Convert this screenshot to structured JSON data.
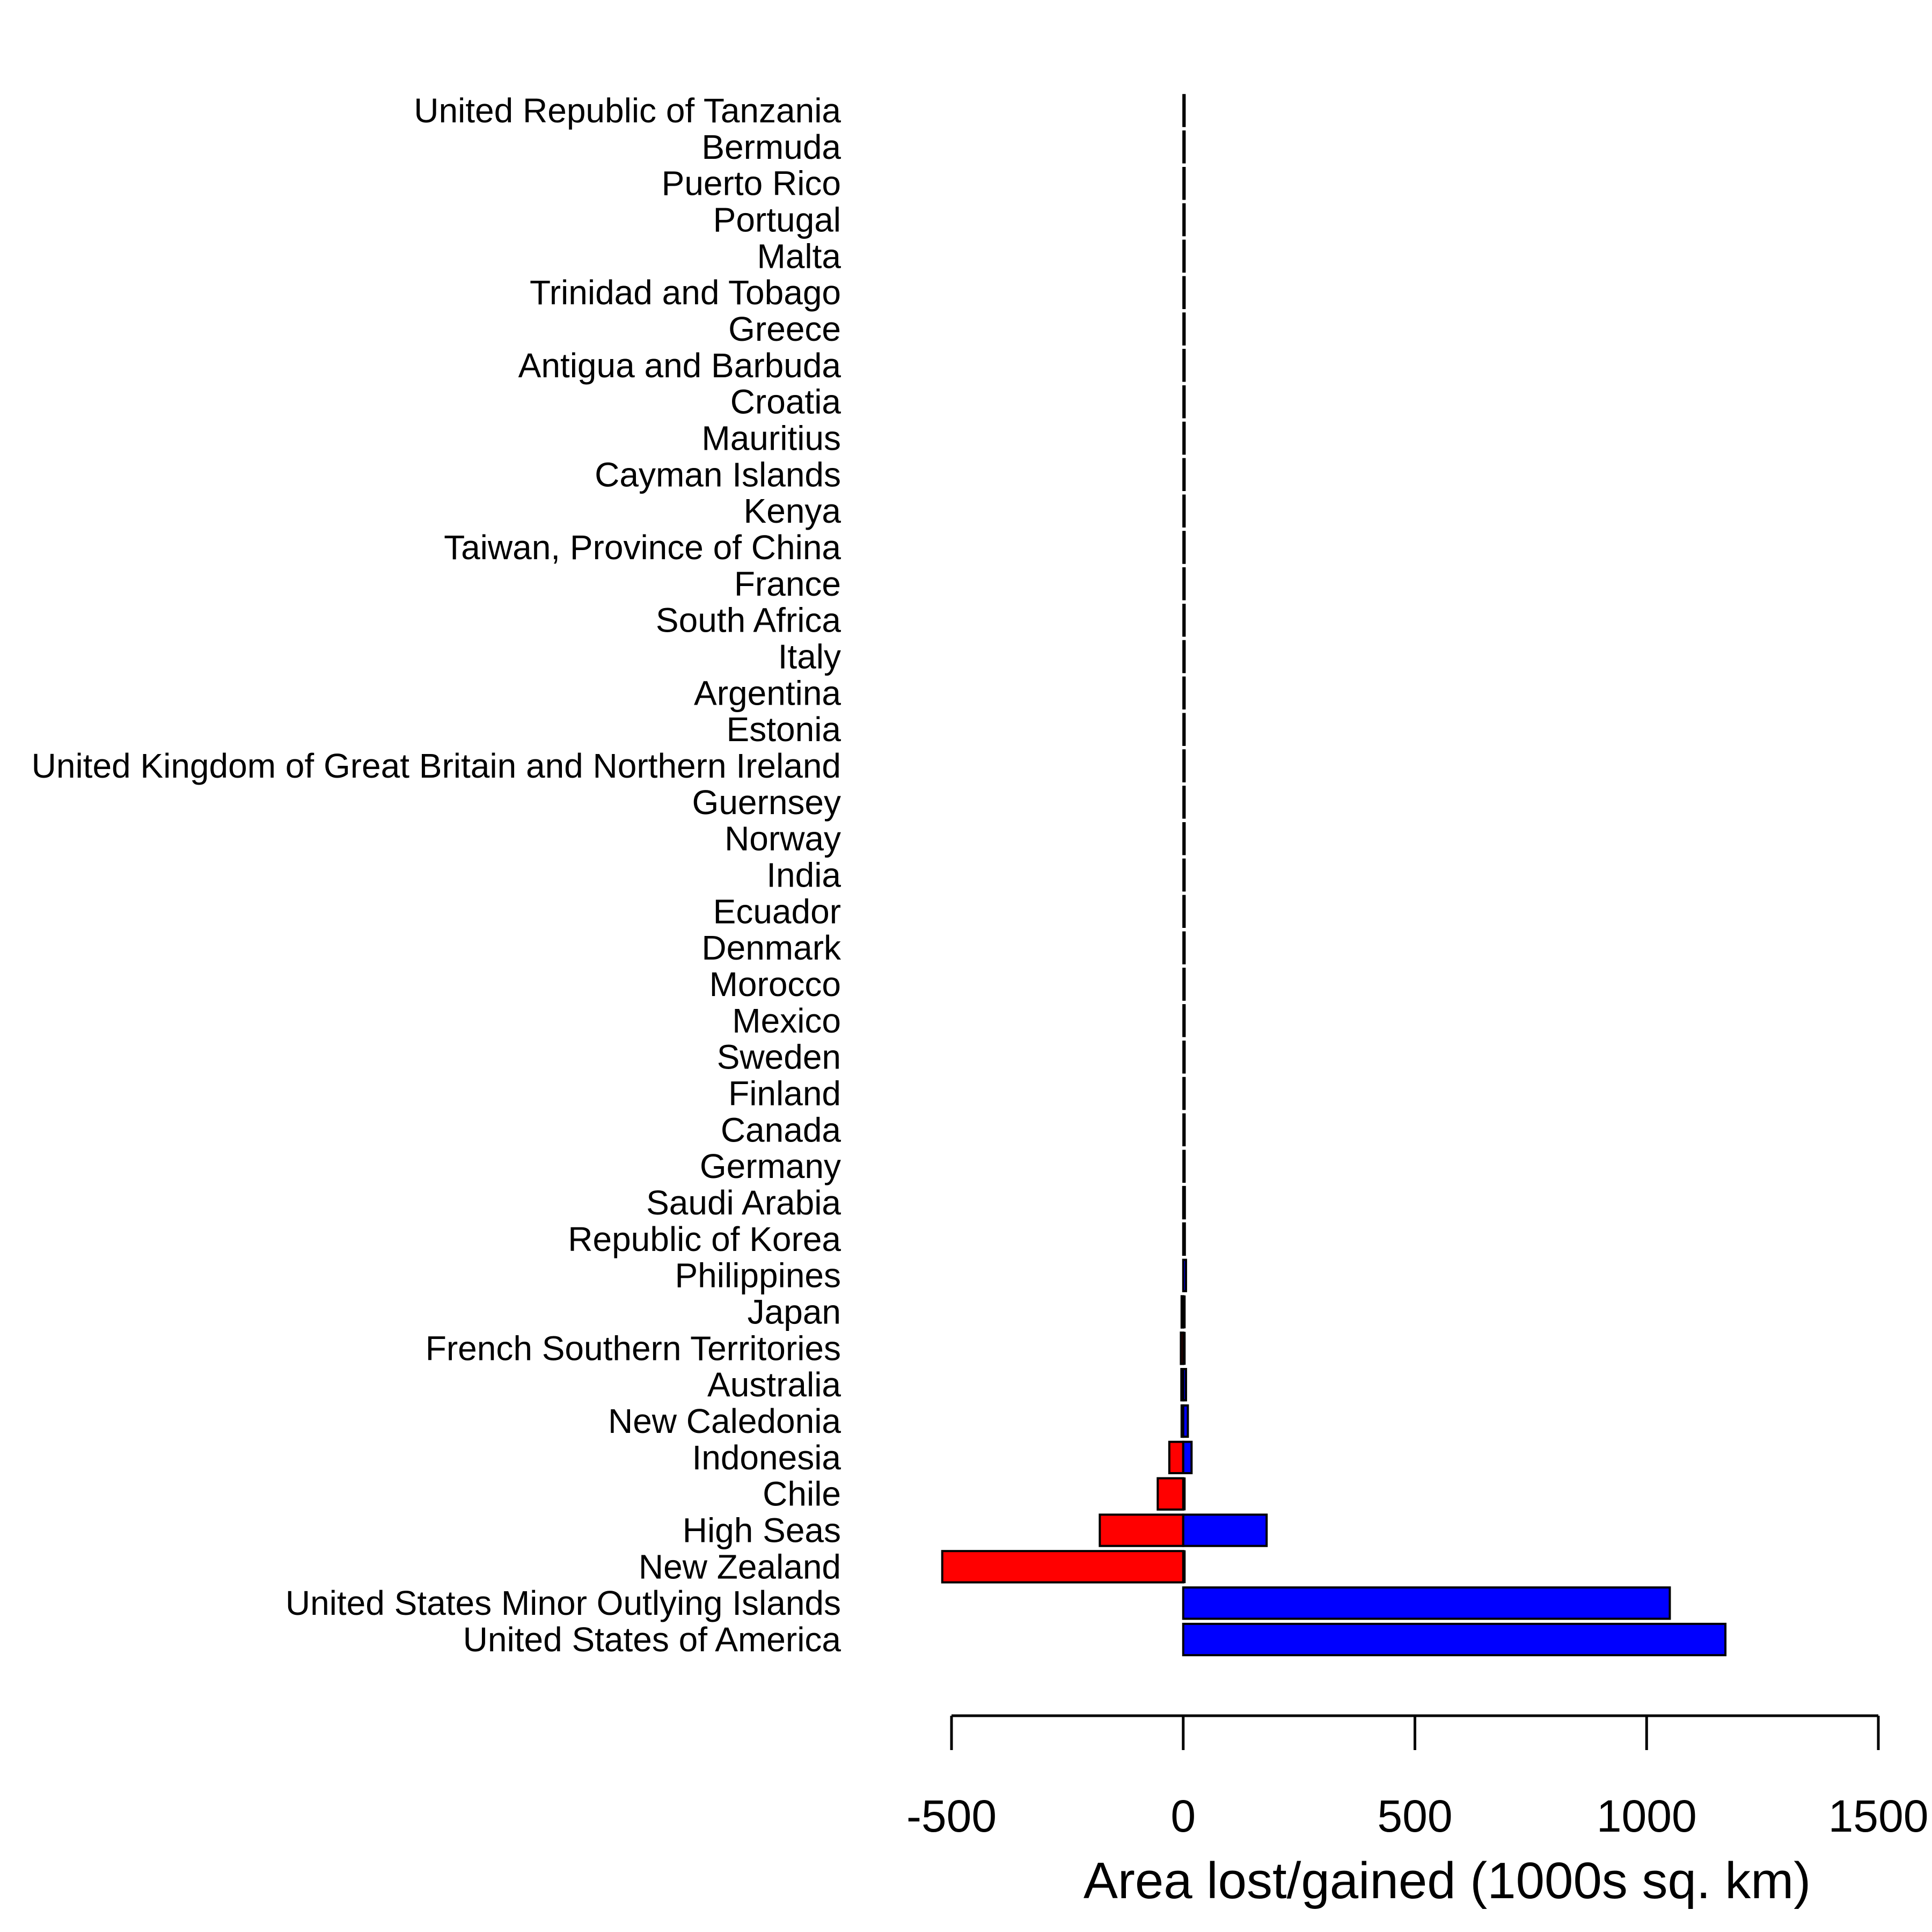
{
  "chart_data": {
    "type": "bar",
    "orientation": "horizontal",
    "title": "",
    "xlabel": "Area lost/gained (1000s sq. km)",
    "ylabel": "",
    "xlim": [
      -500,
      1500
    ],
    "xticks": [
      -500,
      0,
      500,
      1000,
      1500
    ],
    "grid": false,
    "legend": "none",
    "colors": {
      "lost": "#ff0000",
      "gained": "#0000ff",
      "outline": "#000000"
    },
    "categories": [
      "United Republic of Tanzania",
      "Bermuda",
      "Puerto Rico",
      "Portugal",
      "Malta",
      "Trinidad and Tobago",
      "Greece",
      "Antigua and Barbuda",
      "Croatia",
      "Mauritius",
      "Cayman Islands",
      "Kenya",
      "Taiwan, Province of China",
      "France",
      "South Africa",
      "Italy",
      "Argentina",
      "Estonia",
      "United Kingdom of Great Britain and Northern Ireland",
      "Guernsey",
      "Norway",
      "India",
      "Ecuador",
      "Denmark",
      "Morocco",
      "Mexico",
      "Sweden",
      "Finland",
      "Canada",
      "Germany",
      "Saudi Arabia",
      "Republic of Korea",
      "Philippines",
      "Japan",
      "French Southern Territories",
      "Australia",
      "New Caledonia",
      "Indonesia",
      "Chile",
      "High Seas",
      "New Zealand",
      "United States Minor Outlying Islands",
      "United States of America"
    ],
    "series": [
      {
        "key": "lost",
        "values": [
          0,
          0,
          0,
          0,
          0,
          0,
          0,
          0,
          0,
          0,
          0,
          0,
          0,
          0,
          0,
          0,
          0,
          0,
          0,
          0,
          0,
          0,
          0,
          0,
          0,
          0,
          0,
          0,
          0,
          0,
          0,
          0,
          0,
          -3,
          -5,
          -4,
          -3,
          -30,
          -55,
          -180,
          -520,
          0,
          0
        ]
      },
      {
        "key": "gained",
        "values": [
          0,
          0,
          0,
          0,
          0,
          0,
          0,
          0,
          0,
          0,
          0,
          0,
          0,
          0,
          0,
          0,
          0,
          0,
          0,
          0,
          0,
          0,
          0,
          0,
          0,
          0,
          0,
          0,
          0,
          0,
          1,
          2,
          6,
          0,
          0,
          6,
          10,
          18,
          0,
          180,
          0,
          1050,
          1170
        ]
      }
    ]
  }
}
